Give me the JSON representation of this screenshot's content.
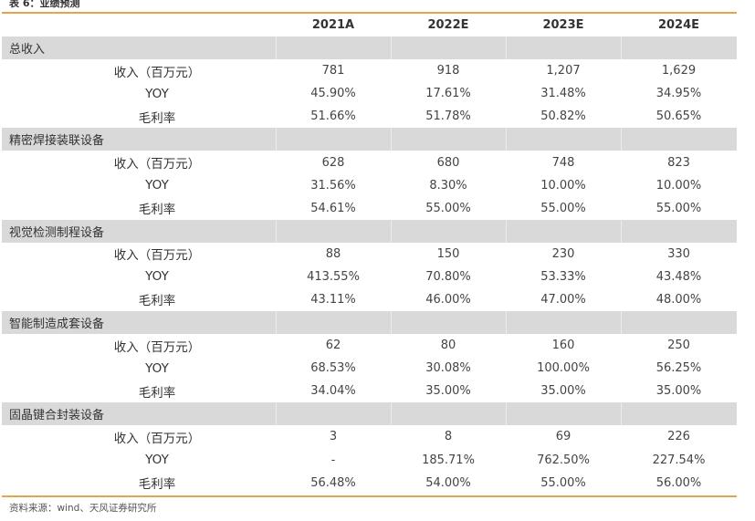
{
  "caption": "表 6：业绩预测",
  "columns": [
    "2021A",
    "2022E",
    "2023E",
    "2024E"
  ],
  "segments": [
    {
      "name": "总收入",
      "rows": [
        {
          "label": "收入（百万元）",
          "values": [
            "781",
            "918",
            "1,207",
            "1,629"
          ]
        },
        {
          "label": "YOY",
          "values": [
            "45.90%",
            "17.61%",
            "31.48%",
            "34.95%"
          ]
        },
        {
          "label": "毛利率",
          "values": [
            "51.66%",
            "51.78%",
            "50.82%",
            "50.65%"
          ]
        }
      ]
    },
    {
      "name": "精密焊接装联设备",
      "rows": [
        {
          "label": "收入（百万元）",
          "values": [
            "628",
            "680",
            "748",
            "823"
          ]
        },
        {
          "label": "YOY",
          "values": [
            "31.56%",
            "8.30%",
            "10.00%",
            "10.00%"
          ]
        },
        {
          "label": "毛利率",
          "values": [
            "54.61%",
            "55.00%",
            "55.00%",
            "55.00%"
          ]
        }
      ]
    },
    {
      "name": "视觉检测制程设备",
      "rows": [
        {
          "label": "收入（百万元）",
          "values": [
            "88",
            "150",
            "230",
            "330"
          ]
        },
        {
          "label": "YOY",
          "values": [
            "413.55%",
            "70.80%",
            "53.33%",
            "43.48%"
          ]
        },
        {
          "label": "毛利率",
          "values": [
            "43.11%",
            "46.00%",
            "47.00%",
            "48.00%"
          ]
        }
      ]
    },
    {
      "name": "智能制造成套设备",
      "rows": [
        {
          "label": "收入（百万元）",
          "values": [
            "62",
            "80",
            "160",
            "250"
          ]
        },
        {
          "label": "YOY",
          "values": [
            "68.53%",
            "30.08%",
            "100.00%",
            "56.25%"
          ]
        },
        {
          "label": "毛利率",
          "values": [
            "34.04%",
            "35.00%",
            "35.00%",
            "35.00%"
          ]
        }
      ]
    },
    {
      "name": "固晶键合封装设备",
      "rows": [
        {
          "label": "收入（百万元）",
          "values": [
            "3",
            "8",
            "69",
            "226"
          ]
        },
        {
          "label": "YOY",
          "values": [
            "-",
            "185.71%",
            "762.50%",
            "227.54%"
          ]
        },
        {
          "label": "毛利率",
          "values": [
            "56.48%",
            "54.00%",
            "55.00%",
            "56.00%"
          ]
        }
      ]
    }
  ],
  "source": "资料来源：wind、天风证券研究所",
  "colors": {
    "rule": "#e8a34a",
    "segment_bg": "#d9d9d9"
  }
}
